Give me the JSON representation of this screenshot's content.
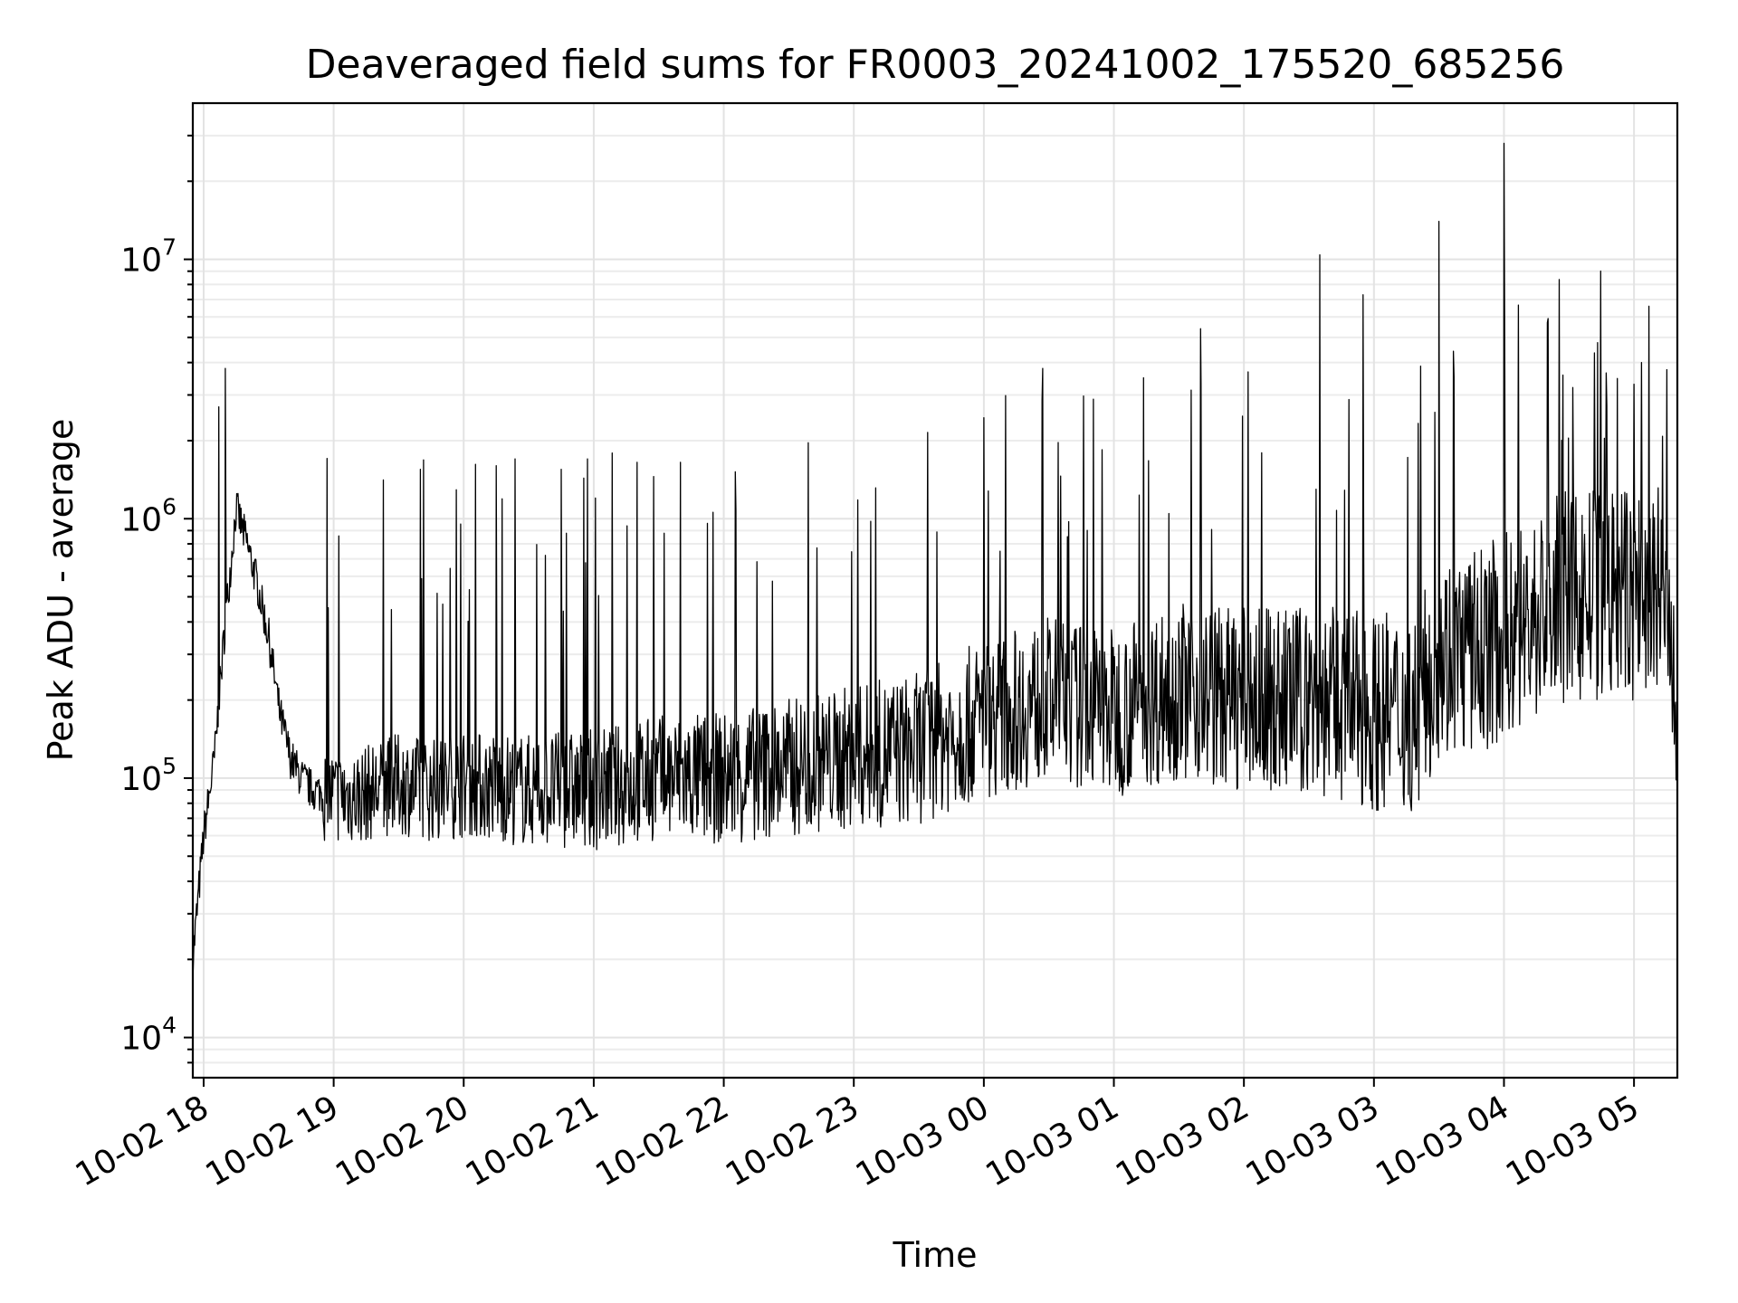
{
  "chart_data": {
    "type": "line",
    "title": "Deaveraged field sums for FR0003_20241002_175520_685256",
    "xlabel": "Time",
    "ylabel": "Peak ADU - average",
    "yscale": "log",
    "ylim": [
      7000,
      40000000
    ],
    "xlim": [
      "2024-10-02 17:55",
      "2024-10-03 05:20"
    ],
    "grid": true,
    "legend": "none",
    "line_color": "#000000",
    "x_ticks": [
      "10-02 18",
      "10-02 19",
      "10-02 20",
      "10-02 21",
      "10-02 22",
      "10-02 23",
      "10-03 00",
      "10-03 01",
      "10-03 02",
      "10-03 03",
      "10-03 04",
      "10-03 05"
    ],
    "y_ticks": [
      {
        "base": "10",
        "exp": "4",
        "value": 10000
      },
      {
        "base": "10",
        "exp": "5",
        "value": 100000
      },
      {
        "base": "10",
        "exp": "6",
        "value": 1000000
      },
      {
        "base": "10",
        "exp": "7",
        "value": 10000000
      }
    ],
    "series": [
      {
        "x": [
          "2024-10-02 17:55",
          "2024-10-02 18:00",
          "2024-10-02 18:05",
          "2024-10-02 18:08",
          "2024-10-02 18:10",
          "2024-10-02 18:15",
          "2024-10-02 18:20",
          "2024-10-02 18:25",
          "2024-10-02 18:30",
          "2024-10-02 18:35",
          "2024-10-02 18:40",
          "2024-10-02 18:45",
          "2024-10-02 18:50",
          "2024-10-02 19:00",
          "2024-10-02 19:10",
          "2024-10-02 19:20",
          "2024-10-02 19:30",
          "2024-10-02 19:45",
          "2024-10-02 20:00",
          "2024-10-02 20:30",
          "2024-10-02 21:00",
          "2024-10-02 21:30",
          "2024-10-02 22:00",
          "2024-10-02 22:30",
          "2024-10-02 23:00",
          "2024-10-02 23:30",
          "2024-10-03 00:00",
          "2024-10-03 00:30",
          "2024-10-03 01:00",
          "2024-10-03 01:30",
          "2024-10-03 02:00",
          "2024-10-03 02:30",
          "2024-10-03 03:00",
          "2024-10-03 03:20",
          "2024-10-03 03:30",
          "2024-10-03 03:45",
          "2024-10-03 04:00",
          "2024-10-03 04:30",
          "2024-10-03 05:00",
          "2024-10-03 05:15",
          "2024-10-03 05:20"
        ],
        "y": [
          20000,
          60000,
          120000,
          250000,
          400000,
          1100000,
          800000,
          550000,
          350000,
          180000,
          120000,
          100000,
          90000,
          85000,
          85000,
          90000,
          95000,
          90000,
          95000,
          90000,
          90000,
          100000,
          100000,
          110000,
          120000,
          130000,
          170000,
          200000,
          180000,
          220000,
          200000,
          200000,
          180000,
          180000,
          300000,
          300000,
          350000,
          500000,
          500000,
          500000,
          100000
        ]
      }
    ],
    "spikes": [
      {
        "x": "2024-10-02 18:07",
        "y": 2700000
      },
      {
        "x": "2024-10-02 18:10",
        "y": 3800000
      },
      {
        "x": "2024-10-02 19:40",
        "y": 1550000
      },
      {
        "x": "2024-10-02 20:15",
        "y": 1600000
      },
      {
        "x": "2024-10-02 20:45",
        "y": 1550000
      },
      {
        "x": "2024-10-02 21:20",
        "y": 1650000
      },
      {
        "x": "2024-10-02 21:40",
        "y": 1650000
      },
      {
        "x": "2024-10-03 00:00",
        "y": 2450000
      },
      {
        "x": "2024-10-03 01:40",
        "y": 5400000
      },
      {
        "x": "2024-10-03 02:35",
        "y": 10400000
      },
      {
        "x": "2024-10-03 02:55",
        "y": 7300000
      },
      {
        "x": "2024-10-03 03:30",
        "y": 14000000
      },
      {
        "x": "2024-10-03 04:00",
        "y": 28000000
      },
      {
        "x": "2024-10-03 04:20",
        "y": 5700000
      },
      {
        "x": "2024-10-03 05:00",
        "y": 3300000
      }
    ]
  }
}
